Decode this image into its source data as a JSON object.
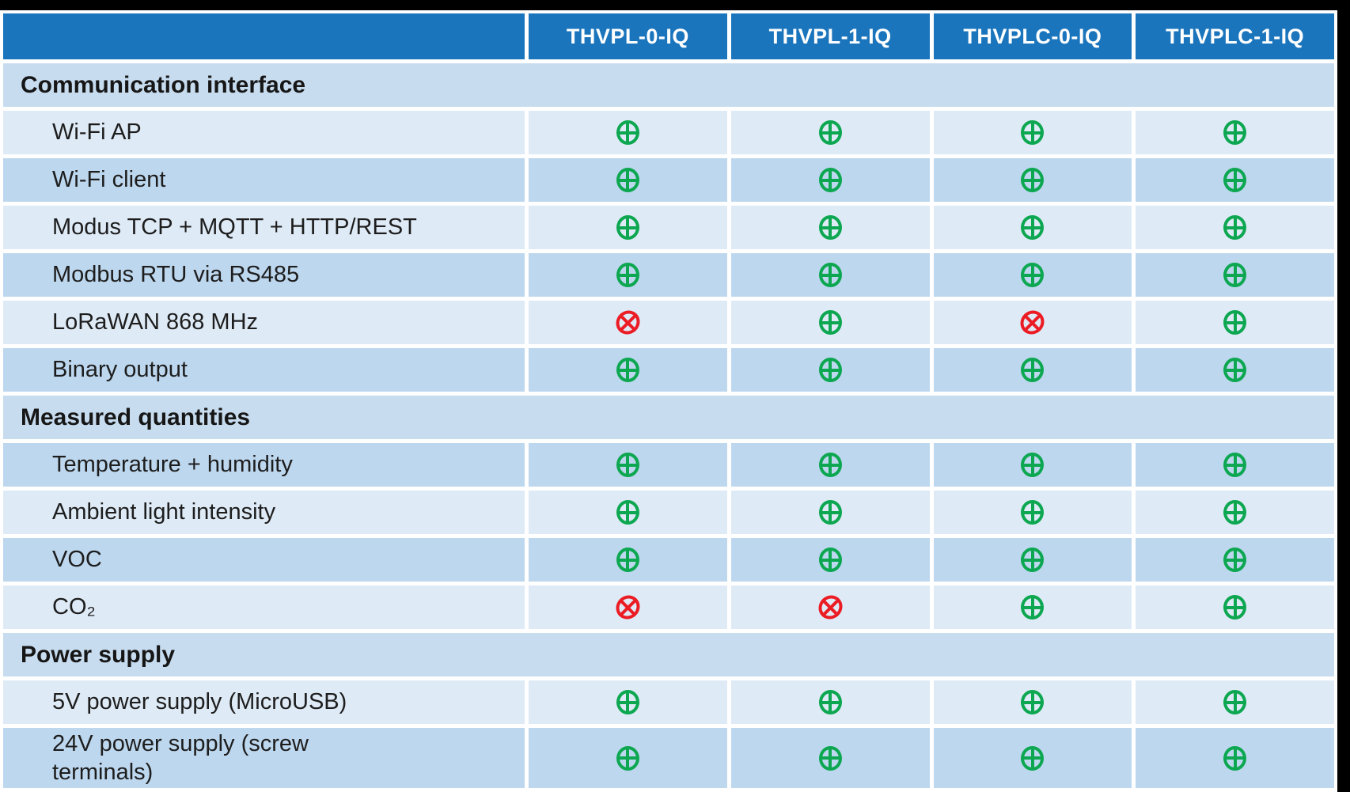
{
  "colors": {
    "header_blue": "#1b75bc",
    "section_bg": "#c7dcef",
    "row_light": "#deeaf6",
    "row_dark": "#bdd7ee",
    "included_green": "#0ca750",
    "excluded_red": "#ec1c24"
  },
  "table": {
    "columns": [
      "THVPL-0-IQ",
      "THVPL-1-IQ",
      "THVPLC-0-IQ",
      "THVPLC-1-IQ"
    ],
    "rows": [
      {
        "type": "section",
        "label": "Communication interface"
      },
      {
        "type": "data",
        "shade": "light",
        "label": "Wi-Fi AP",
        "values": [
          "yes",
          "yes",
          "yes",
          "yes"
        ]
      },
      {
        "type": "data",
        "shade": "dark",
        "label": "Wi-Fi client",
        "values": [
          "yes",
          "yes",
          "yes",
          "yes"
        ]
      },
      {
        "type": "data",
        "shade": "light",
        "label": "Modus TCP + MQTT + HTTP/REST",
        "values": [
          "yes",
          "yes",
          "yes",
          "yes"
        ]
      },
      {
        "type": "data",
        "shade": "dark",
        "label": "Modbus RTU via RS485",
        "values": [
          "yes",
          "yes",
          "yes",
          "yes"
        ]
      },
      {
        "type": "data",
        "shade": "light",
        "label": "LoRaWAN 868 MHz",
        "values": [
          "no",
          "yes",
          "no",
          "yes"
        ]
      },
      {
        "type": "data",
        "shade": "dark",
        "label": "Binary output",
        "values": [
          "yes",
          "yes",
          "yes",
          "yes"
        ]
      },
      {
        "type": "section",
        "label": "Measured quantities"
      },
      {
        "type": "data",
        "shade": "dark",
        "label": "Temperature + humidity",
        "values": [
          "yes",
          "yes",
          "yes",
          "yes"
        ]
      },
      {
        "type": "data",
        "shade": "light",
        "label": "Ambient light intensity",
        "values": [
          "yes",
          "yes",
          "yes",
          "yes"
        ]
      },
      {
        "type": "data",
        "shade": "dark",
        "label": "VOC",
        "values": [
          "yes",
          "yes",
          "yes",
          "yes"
        ]
      },
      {
        "type": "data",
        "shade": "light",
        "label": "CO₂",
        "values": [
          "no",
          "no",
          "yes",
          "yes"
        ]
      },
      {
        "type": "section",
        "label": "Power supply"
      },
      {
        "type": "data",
        "shade": "light",
        "label": "5V power supply (MicroUSB)",
        "values": [
          "yes",
          "yes",
          "yes",
          "yes"
        ]
      },
      {
        "type": "data",
        "shade": "dark",
        "label": "24V power supply (screw\nterminals)",
        "values": [
          "yes",
          "yes",
          "yes",
          "yes"
        ]
      }
    ]
  }
}
